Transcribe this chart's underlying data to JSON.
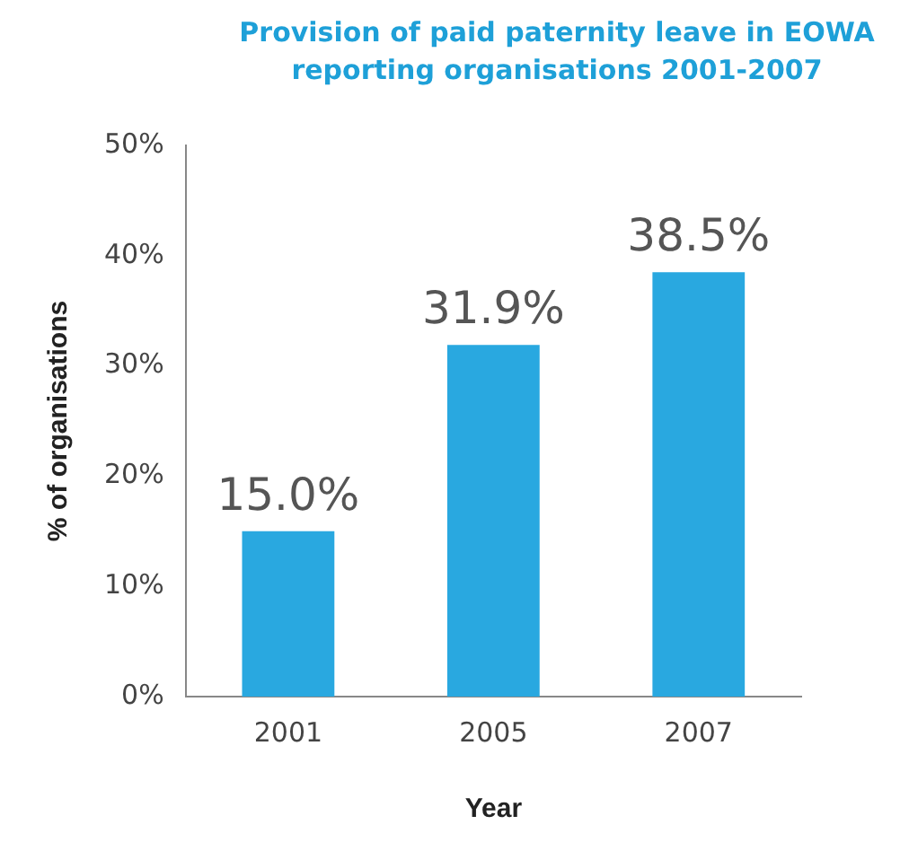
{
  "chart_data": {
    "type": "bar",
    "title": "Provision of paid paternity leave in EOWA reporting organisations 2001-2007",
    "xlabel": "Year",
    "ylabel": "% of organisations",
    "categories": [
      "2001",
      "2005",
      "2007"
    ],
    "values": [
      15.0,
      31.9,
      38.5
    ],
    "value_labels": [
      "15.0%",
      "31.9%",
      "38.5%"
    ],
    "color": "#29a8e0",
    "ylim": [
      0,
      50
    ],
    "yticks": [
      {
        "value": 0,
        "label": "0%"
      },
      {
        "value": 10,
        "label": "10%"
      },
      {
        "value": 20,
        "label": "20%"
      },
      {
        "value": 30,
        "label": "30%"
      },
      {
        "value": 40,
        "label": "40%"
      },
      {
        "value": 50,
        "label": "50%"
      }
    ],
    "grid": false,
    "legend": false
  }
}
